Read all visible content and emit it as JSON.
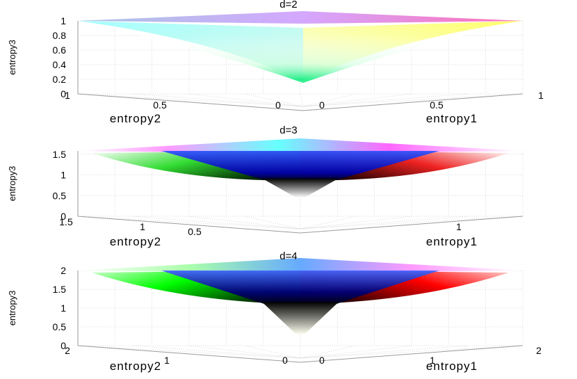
{
  "chart_data": [
    {
      "type": "surface",
      "title": "d=2",
      "xlabel": "entropy1",
      "ylabel": "entropy2",
      "zlabel": "entropy3",
      "xlim": [
        0,
        1
      ],
      "ylim": [
        0,
        1
      ],
      "zlim": [
        0,
        1
      ],
      "x_ticks": [
        "0",
        "0.5",
        "1"
      ],
      "y_ticks": [
        "0",
        "0.5",
        "1"
      ],
      "z_ticks": [
        "0",
        "0.2",
        "0.4",
        "0.6",
        "0.8",
        "1"
      ],
      "z_min_surface": 0.15,
      "colors": {
        "left": "#00ffff",
        "right": "#ffff00",
        "top": "#ff00ff",
        "bottom": "#ffffff"
      }
    },
    {
      "type": "surface",
      "title": "d=3",
      "xlabel": "entropy1",
      "ylabel": "entropy2",
      "zlabel": "entropy3",
      "xlim": [
        0,
        1.58
      ],
      "ylim": [
        0,
        1.58
      ],
      "zlim": [
        0,
        1.58
      ],
      "x_ticks": [
        "1"
      ],
      "y_ticks": [
        "0.5",
        "1",
        "1.5"
      ],
      "z_ticks": [
        "0",
        "0.5",
        "1",
        "1.5"
      ],
      "z_min_surface": 0.45,
      "colors": {
        "left": "#00ff00",
        "right": "#ff0000",
        "top": "#0000ff",
        "bottom": "#ffffff"
      }
    },
    {
      "type": "surface",
      "title": "d=4",
      "xlabel": "entropy1",
      "ylabel": "entropy2",
      "zlabel": "entropy3",
      "xlim": [
        0,
        2
      ],
      "ylim": [
        0,
        2
      ],
      "zlim": [
        0,
        2
      ],
      "x_ticks": [
        "0",
        "1",
        "2"
      ],
      "y_ticks": [
        "0",
        "1",
        "2"
      ],
      "z_ticks": [
        "0",
        "0.5",
        "1",
        "1.5",
        "2"
      ],
      "z_min_surface": 0.3,
      "colors": {
        "left": "#00ff00",
        "right": "#ff0000",
        "top": "#0000ff",
        "bottom": "#ffffff"
      }
    }
  ]
}
